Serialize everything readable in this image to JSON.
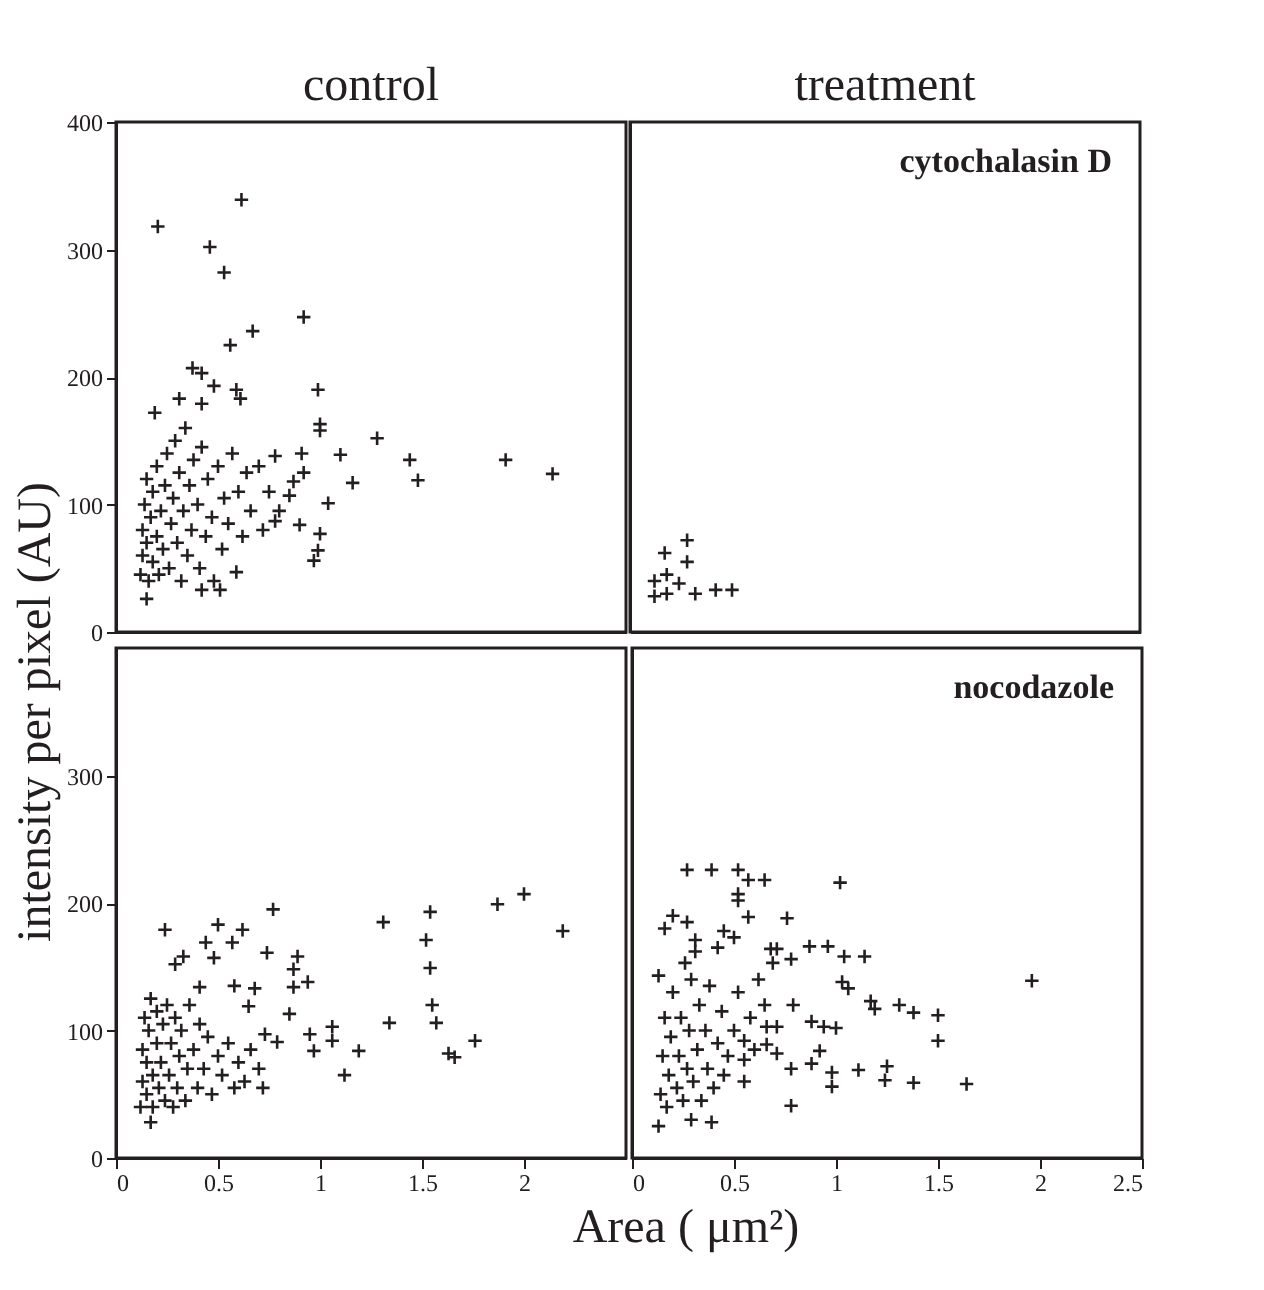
{
  "chart_data": [
    {
      "type": "scatter",
      "title": "control",
      "ylabel": "intensity per pixel (AU)",
      "marker": "cross",
      "grid": false,
      "tick_labels": "y",
      "color": "#231f20",
      "xlim": [
        0,
        2.5
      ],
      "ylim": [
        0,
        400
      ],
      "xticks": [
        0,
        0.5,
        1,
        1.5,
        2
      ],
      "yticks": [
        0,
        100,
        200,
        300,
        400
      ],
      "x": [
        0.615,
        0.205,
        0.46,
        0.53,
        0.92,
        0.67,
        0.56,
        0.375,
        0.42,
        0.48,
        0.99,
        0.59,
        0.61,
        0.31,
        0.42,
        0.19,
        1.0,
        1.0,
        1.28,
        1.44,
        1.91,
        2.14,
        1.48,
        1.16,
        1.1,
        0.91,
        0.92,
        1.04,
        0.87,
        0.85,
        0.78,
        0.78,
        0.9,
        1.0,
        0.99,
        0.97,
        0.15,
        0.42,
        0.51,
        0.59,
        0.12,
        0.13,
        0.13,
        0.14,
        0.15,
        0.15,
        0.16,
        0.17,
        0.18,
        0.18,
        0.2,
        0.2,
        0.21,
        0.22,
        0.23,
        0.24,
        0.25,
        0.26,
        0.27,
        0.28,
        0.29,
        0.3,
        0.31,
        0.32,
        0.33,
        0.34,
        0.35,
        0.36,
        0.37,
        0.38,
        0.4,
        0.41,
        0.42,
        0.44,
        0.45,
        0.47,
        0.48,
        0.5,
        0.52,
        0.53,
        0.55,
        0.57,
        0.6,
        0.62,
        0.64,
        0.66,
        0.7,
        0.72,
        0.75,
        0.8
      ],
      "values": [
        339,
        318,
        302,
        282,
        247,
        236,
        225,
        207,
        203,
        193,
        190,
        190,
        183,
        183,
        179,
        172,
        163,
        158,
        152,
        135,
        135,
        124,
        119,
        117,
        139,
        140,
        125,
        101,
        118,
        107,
        138,
        87,
        84,
        77,
        64,
        56,
        26,
        33,
        33,
        47,
        45,
        60,
        80,
        100,
        70,
        120,
        40,
        90,
        55,
        110,
        75,
        130,
        45,
        95,
        65,
        115,
        140,
        50,
        85,
        105,
        150,
        70,
        125,
        40,
        95,
        160,
        60,
        115,
        80,
        135,
        100,
        50,
        145,
        75,
        120,
        90,
        40,
        130,
        65,
        105,
        85,
        140,
        110,
        75,
        125,
        95,
        130,
        80,
        110,
        95
      ]
    },
    {
      "type": "scatter",
      "title": "treatment",
      "marker": "cross",
      "grid": false,
      "tick_labels": false,
      "color": "#231f20",
      "annotations": [
        "cytochalasin D"
      ],
      "xlim": [
        0,
        2.5
      ],
      "ylim": [
        0,
        400
      ],
      "xticks": [
        0,
        0.5,
        1,
        1.5,
        2
      ],
      "yticks": [
        0,
        100,
        200,
        300,
        400
      ],
      "x": [
        0.28,
        0.17,
        0.28,
        0.12,
        0.12,
        0.18,
        0.18,
        0.24,
        0.32,
        0.42,
        0.5
      ],
      "values": [
        72,
        62,
        55,
        40,
        28,
        45,
        30,
        38,
        30,
        33,
        33
      ]
    },
    {
      "type": "scatter",
      "xlabel": "Area ( μm²)",
      "marker": "cross",
      "grid": false,
      "color": "#231f20",
      "xlim": [
        0,
        2.5
      ],
      "ylim": [
        0,
        400
      ],
      "xticks": [
        0,
        0.5,
        1,
        1.5,
        2
      ],
      "yticks": [
        0,
        100,
        200,
        300
      ],
      "x": [
        1.87,
        2.0,
        2.19,
        1.31,
        1.54,
        1.52,
        1.54,
        1.55,
        1.57,
        1.34,
        1.63,
        1.66,
        1.76,
        1.19,
        1.12,
        1.06,
        1.06,
        0.97,
        0.95,
        0.77,
        0.5,
        0.62,
        0.24,
        0.44,
        0.57,
        0.48,
        0.74,
        0.89,
        0.87,
        0.94,
        0.87,
        0.33,
        0.29,
        0.68,
        0.58,
        0.41,
        0.85,
        0.65,
        0.73,
        0.79,
        0.17,
        0.12,
        0.13,
        0.13,
        0.14,
        0.15,
        0.15,
        0.16,
        0.17,
        0.18,
        0.18,
        0.2,
        0.2,
        0.21,
        0.22,
        0.23,
        0.24,
        0.25,
        0.26,
        0.27,
        0.28,
        0.29,
        0.3,
        0.31,
        0.32,
        0.34,
        0.35,
        0.36,
        0.38,
        0.4,
        0.41,
        0.43,
        0.45,
        0.47,
        0.5,
        0.52,
        0.55,
        0.58,
        0.6,
        0.63,
        0.66,
        0.7,
        0.72
      ],
      "values": [
        199,
        207,
        178,
        185,
        193,
        171,
        149,
        120,
        106,
        106,
        82,
        79,
        92,
        84,
        65,
        103,
        92,
        84,
        97,
        195,
        183,
        179,
        179,
        169,
        169,
        157,
        161,
        158,
        148,
        138,
        134,
        158,
        152,
        133,
        135,
        134,
        113,
        119,
        97,
        91,
        28,
        40,
        60,
        85,
        110,
        50,
        75,
        100,
        125,
        40,
        65,
        90,
        115,
        55,
        75,
        105,
        45,
        120,
        65,
        90,
        40,
        110,
        55,
        80,
        100,
        45,
        70,
        120,
        85,
        55,
        105,
        70,
        95,
        50,
        80,
        65,
        90,
        55,
        75,
        60,
        85,
        70,
        55
      ]
    },
    {
      "type": "scatter",
      "marker": "cross",
      "grid": false,
      "tick_labels": "x",
      "color": "#231f20",
      "annotations": [
        "nocodazole"
      ],
      "xlim": [
        0,
        2.5
      ],
      "ylim": [
        0,
        400
      ],
      "xticks": [
        0,
        0.5,
        1,
        1.5,
        2,
        2.5
      ],
      "yticks": [
        0,
        100,
        200,
        300
      ],
      "x": [
        0.27,
        0.39,
        0.52,
        0.57,
        0.65,
        1.02,
        0.52,
        0.52,
        0.57,
        0.76,
        0.2,
        0.27,
        0.16,
        0.45,
        0.5,
        0.31,
        0.31,
        0.42,
        0.68,
        0.71,
        0.87,
        0.96,
        1.04,
        1.14,
        0.78,
        1.96,
        1.03,
        1.06,
        1.17,
        1.19,
        1.31,
        1.38,
        1.5,
        1.5,
        1.0,
        0.94,
        0.88,
        0.79,
        0.71,
        0.66,
        0.92,
        0.88,
        0.78,
        0.98,
        0.98,
        1.11,
        1.25,
        1.24,
        1.38,
        1.64,
        0.78,
        0.13,
        0.29,
        0.39,
        0.69,
        0.66,
        0.71,
        0.55,
        0.55,
        0.13,
        0.26,
        0.14,
        0.15,
        0.16,
        0.17,
        0.18,
        0.19,
        0.2,
        0.22,
        0.23,
        0.24,
        0.25,
        0.27,
        0.28,
        0.29,
        0.3,
        0.32,
        0.33,
        0.34,
        0.36,
        0.37,
        0.38,
        0.4,
        0.42,
        0.44,
        0.45,
        0.47,
        0.5,
        0.52,
        0.55,
        0.58,
        0.6,
        0.62,
        0.65
      ],
      "values": [
        226,
        226,
        226,
        218,
        218,
        216,
        207,
        202,
        189,
        188,
        190,
        185,
        180,
        178,
        173,
        171,
        162,
        165,
        164,
        164,
        166,
        166,
        158,
        158,
        156,
        139,
        138,
        133,
        123,
        117,
        120,
        114,
        112,
        92,
        102,
        103,
        107,
        120,
        103,
        103,
        84,
        74,
        70,
        67,
        56,
        69,
        72,
        61,
        59,
        58,
        41,
        25,
        30,
        28,
        153,
        89,
        82,
        92,
        77,
        143,
        153,
        50,
        80,
        110,
        40,
        65,
        95,
        130,
        55,
        80,
        110,
        45,
        70,
        100,
        140,
        60,
        85,
        120,
        45,
        100,
        70,
        135,
        55,
        90,
        115,
        65,
        80,
        100,
        130,
        60,
        110,
        85,
        140,
        120
      ]
    }
  ]
}
